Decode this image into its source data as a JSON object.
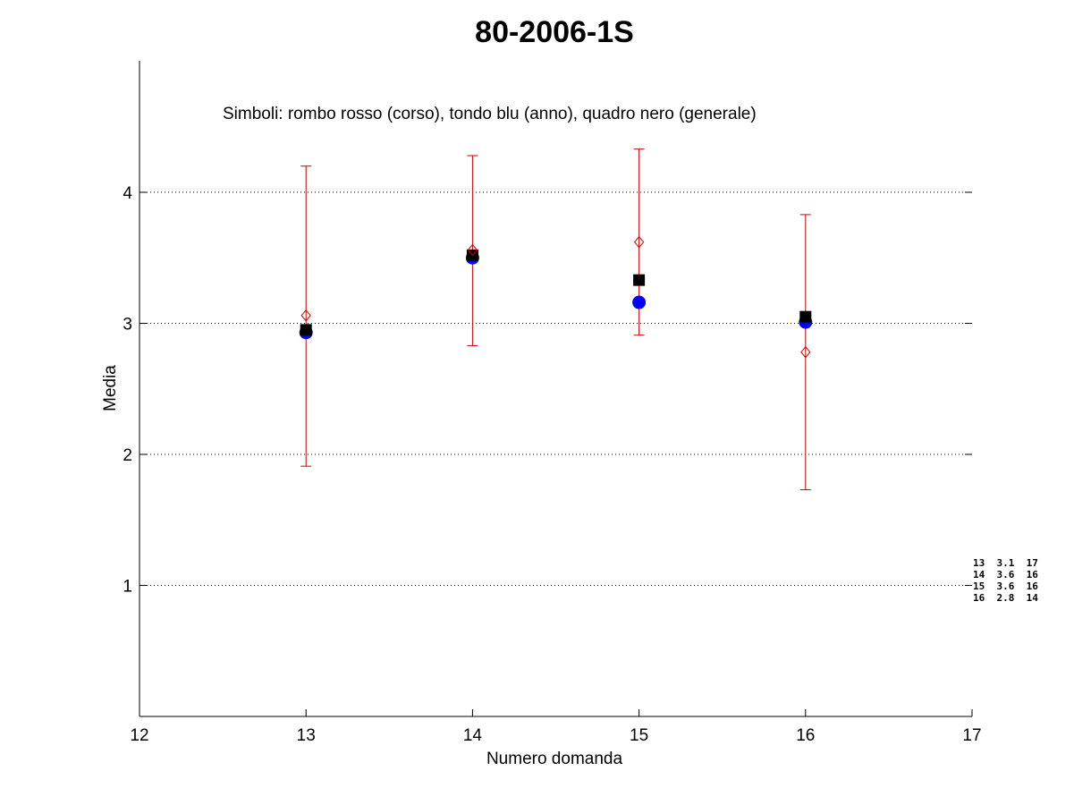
{
  "chart_data": {
    "type": "scatter",
    "title": "80-2006-1S",
    "xlabel": "Numero domanda",
    "ylabel": "Media",
    "xlim": [
      12,
      17
    ],
    "ylim": [
      0,
      5
    ],
    "xticks": [
      "12",
      "13",
      "14",
      "15",
      "16",
      "17"
    ],
    "yticks": [
      "1",
      "2",
      "3",
      "4"
    ],
    "grid": "horizontal dotted",
    "annotation": "Simboli: rombo rosso (corso), tondo blu (anno), quadro nero (generale)",
    "x": [
      13,
      14,
      15,
      16
    ],
    "series": [
      {
        "marker": "diamond",
        "color": "#cc0000",
        "values": [
          3.06,
          3.56,
          3.62,
          2.78
        ],
        "error_low": [
          1.91,
          2.83,
          2.91,
          1.73
        ],
        "error_high": [
          4.2,
          4.28,
          4.33,
          3.83
        ]
      },
      {
        "marker": "circle",
        "color": "#0000ff",
        "values": [
          2.93,
          3.5,
          3.16,
          3.01
        ]
      },
      {
        "marker": "square",
        "color": "#000000",
        "values": [
          2.95,
          3.52,
          3.33,
          3.05
        ]
      }
    ],
    "side_table": [
      "13  3.1  17",
      "14  3.6  16",
      "15  3.6  16",
      "16  2.8  14"
    ]
  }
}
